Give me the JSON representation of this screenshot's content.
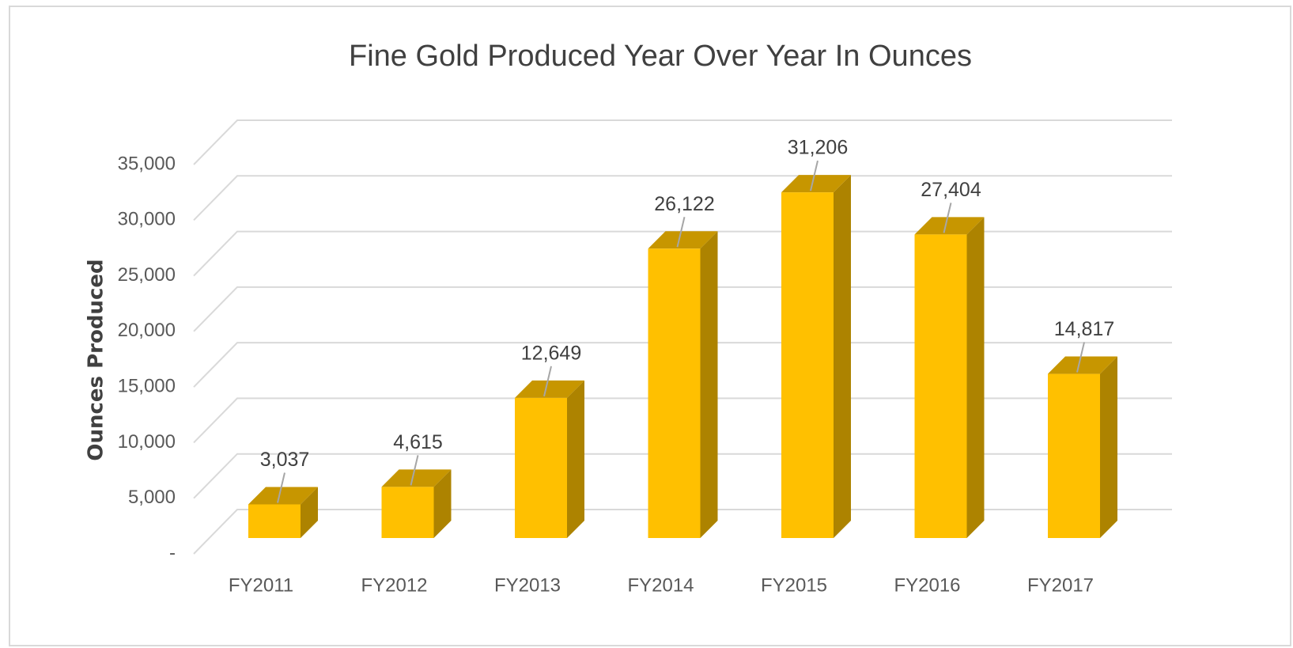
{
  "chart_data": {
    "type": "bar3d",
    "title": "Fine Gold Produced Year Over Year In Ounces",
    "y_label": "Ounces Produced",
    "categories": [
      "FY2011",
      "FY2012",
      "FY2013",
      "FY2014",
      "FY2015",
      "FY2016",
      "FY2017"
    ],
    "values": [
      3037,
      4615,
      12649,
      26122,
      31206,
      27404,
      14817
    ],
    "value_labels": [
      "3,037",
      "4,615",
      "12,649",
      "26,122",
      "31,206",
      "27,404",
      "14,817"
    ],
    "color": "#ffc000",
    "ylim": [
      0,
      35000
    ],
    "yticks": [
      {
        "value": 0,
        "label": "-"
      },
      {
        "value": 5000,
        "label": "5,000"
      },
      {
        "value": 10000,
        "label": "10,000"
      },
      {
        "value": 15000,
        "label": "15,000"
      },
      {
        "value": 20000,
        "label": "20,000"
      },
      {
        "value": 25000,
        "label": "25,000"
      },
      {
        "value": 30000,
        "label": "30,000"
      },
      {
        "value": 35000,
        "label": "35,000"
      }
    ],
    "grid": true
  }
}
